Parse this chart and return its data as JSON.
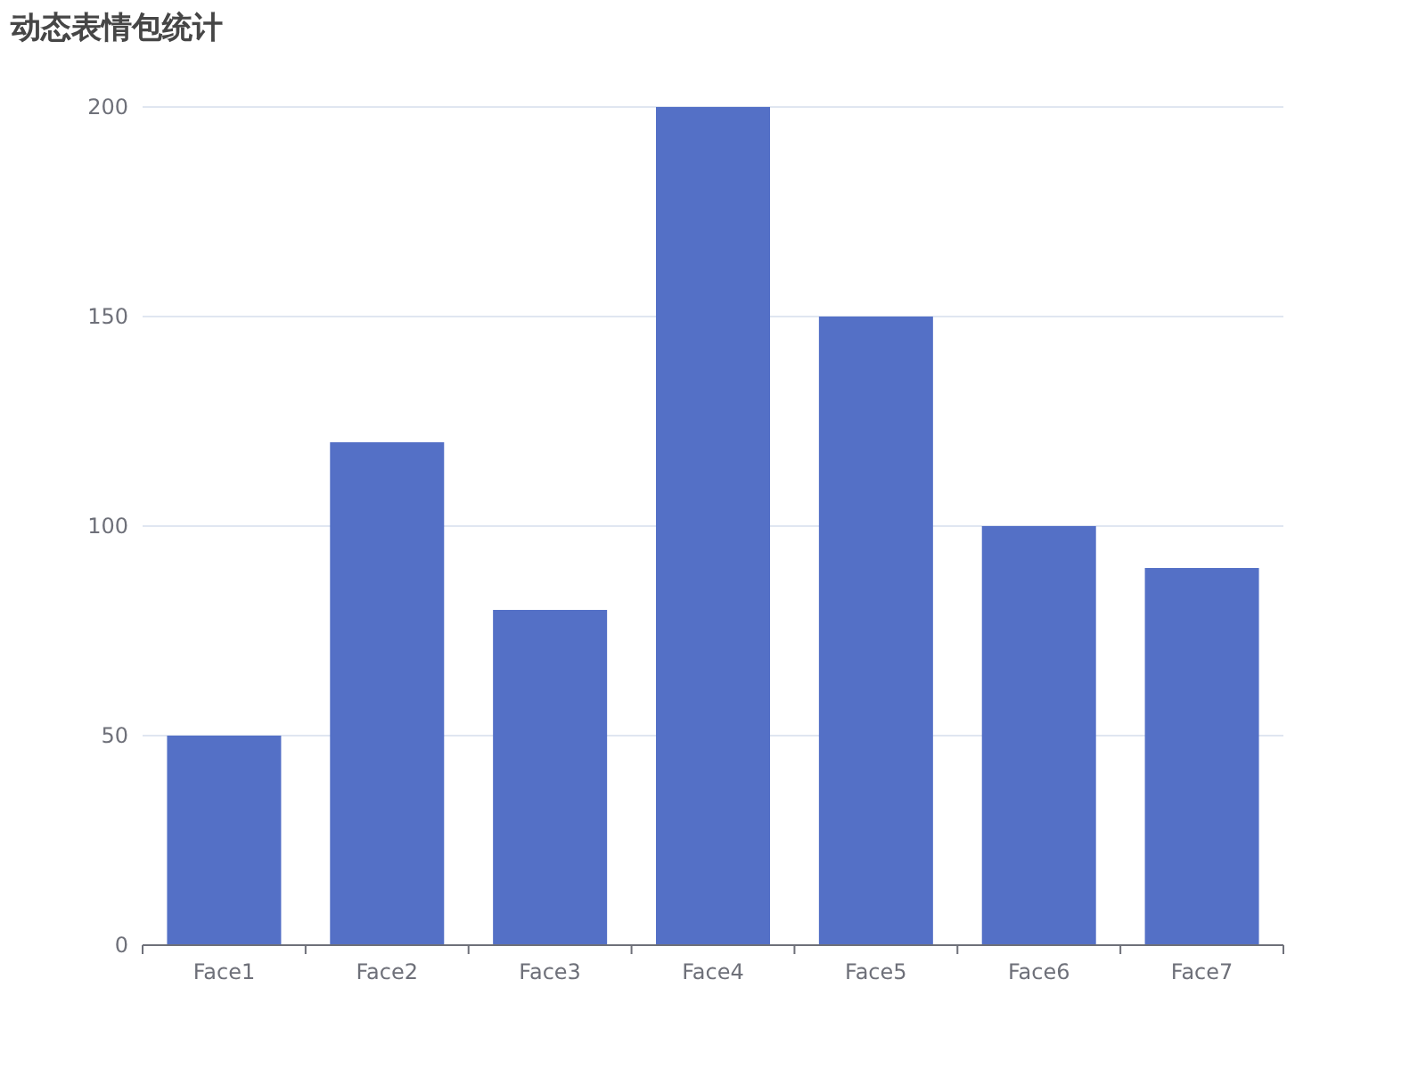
{
  "chart_data": {
    "type": "bar",
    "title": "动态表情包统计",
    "categories": [
      "Face1",
      "Face2",
      "Face3",
      "Face4",
      "Face5",
      "Face6",
      "Face7"
    ],
    "values": [
      50,
      120,
      80,
      200,
      150,
      100,
      90
    ],
    "color": "#5470c6",
    "ylim": [
      0,
      200
    ],
    "yticks": [
      0,
      50,
      100,
      150,
      200
    ],
    "grid": "y"
  }
}
